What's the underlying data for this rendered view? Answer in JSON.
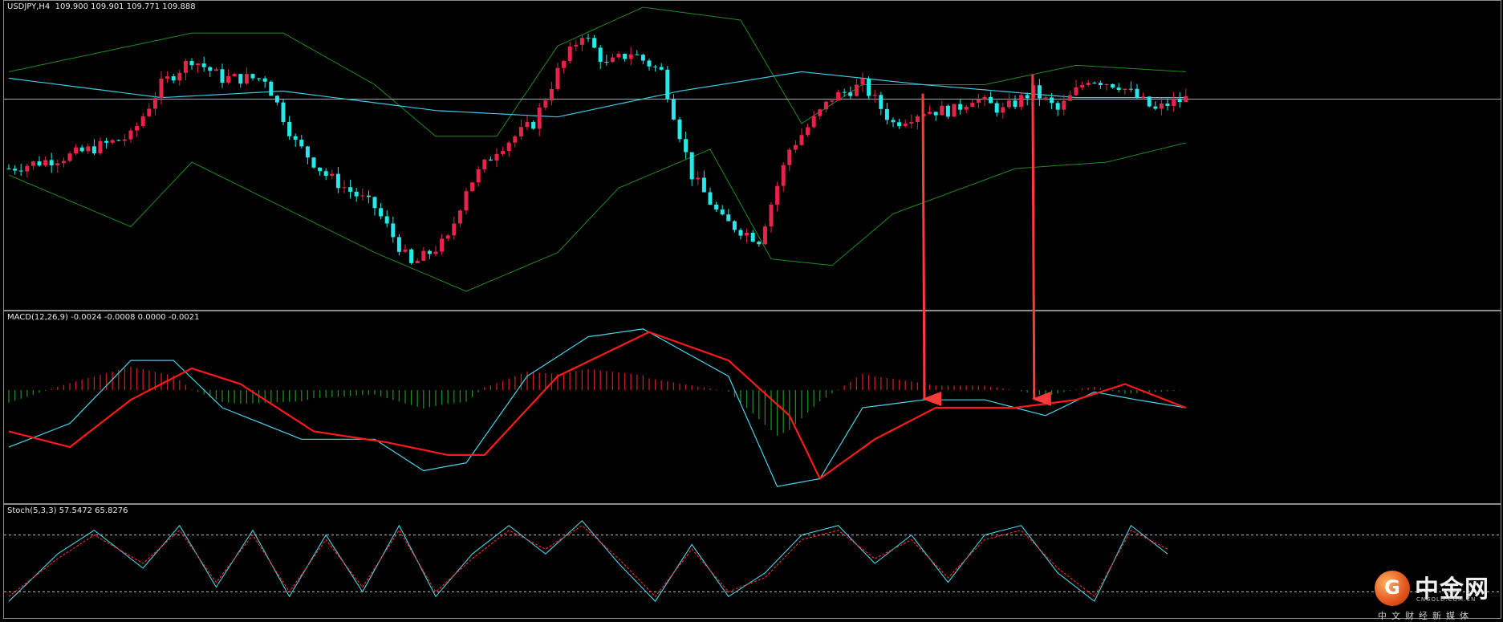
{
  "main_pane": {
    "label": "USDJPY,H4  109.900 109.901 109.771 109.888"
  },
  "macd_pane": {
    "label": "MACD(12,26,9) -0.0024 -0.0008 0.0000 -0.0021"
  },
  "stoch_pane": {
    "label": "Stoch(5,3,3) 57.5472 65.8276"
  },
  "logo": {
    "text": "中金网",
    "url": "CNGOLD.COM.CN",
    "subtitle": "中文财经新媒体"
  },
  "colors": {
    "bull": "#e8234b",
    "bear": "#26e8e8",
    "bollinger": "#1f8c1f",
    "ma": "#3cc8e0",
    "macd_signal": "#ff1a1a",
    "macd_line": "#4ad4e8",
    "hist_pos": "#c81e1e",
    "hist_neg": "#1f8c1f",
    "stoch_main": "#4ad4e8",
    "stoch_signal": "#ff2a2a",
    "arrow": "#ff3a3a"
  },
  "chart_data": [
    {
      "type": "candlestick",
      "symbol": "USDJPY",
      "timeframe": "H4",
      "indicators": [
        "Bollinger Bands",
        "Moving Average"
      ],
      "ylim": [
        108.3,
        110.55
      ],
      "current_price_line": 109.888,
      "close_path": [
        [
          0,
          109.35
        ],
        [
          10,
          109.45
        ],
        [
          20,
          109.6
        ],
        [
          25,
          110.0
        ],
        [
          30,
          110.2
        ],
        [
          35,
          110.05
        ],
        [
          42,
          110.05
        ],
        [
          47,
          109.55
        ],
        [
          52,
          109.3
        ],
        [
          60,
          109.05
        ],
        [
          66,
          108.6
        ],
        [
          72,
          108.8
        ],
        [
          75,
          109.2
        ],
        [
          80,
          109.5
        ],
        [
          86,
          109.7
        ],
        [
          90,
          110.1
        ],
        [
          94,
          110.4
        ],
        [
          98,
          110.15
        ],
        [
          102,
          110.25
        ],
        [
          107,
          110.1
        ],
        [
          112,
          109.3
        ],
        [
          117,
          108.95
        ],
        [
          123,
          108.8
        ],
        [
          128,
          109.5
        ],
        [
          135,
          109.9
        ],
        [
          140,
          110.0
        ],
        [
          145,
          109.7
        ],
        [
          150,
          109.8
        ],
        [
          155,
          109.8
        ],
        [
          158,
          109.9
        ],
        [
          163,
          109.8
        ],
        [
          168,
          109.95
        ],
        [
          172,
          109.8
        ],
        [
          177,
          110.05
        ],
        [
          182,
          110.0
        ],
        [
          185,
          109.9
        ],
        [
          188,
          109.8
        ],
        [
          190,
          109.85
        ],
        [
          193,
          109.89
        ]
      ],
      "series": [
        {
          "name": "upper_band",
          "points": [
            [
              0,
              110.1
            ],
            [
              30,
              110.4
            ],
            [
              45,
              110.4
            ],
            [
              60,
              110.0
            ],
            [
              70,
              109.6
            ],
            [
              80,
              109.6
            ],
            [
              90,
              110.3
            ],
            [
              104,
              110.6
            ],
            [
              120,
              110.5
            ],
            [
              130,
              109.7
            ],
            [
              140,
              110.0
            ],
            [
              160,
              110.0
            ],
            [
              175,
              110.15
            ],
            [
              193,
              110.1
            ]
          ]
        },
        {
          "name": "lower_band",
          "points": [
            [
              0,
              109.3
            ],
            [
              20,
              108.9
            ],
            [
              30,
              109.4
            ],
            [
              45,
              109.05
            ],
            [
              60,
              108.7
            ],
            [
              75,
              108.4
            ],
            [
              90,
              108.7
            ],
            [
              100,
              109.2
            ],
            [
              115,
              109.5
            ],
            [
              125,
              108.65
            ],
            [
              135,
              108.6
            ],
            [
              145,
              109.0
            ],
            [
              165,
              109.35
            ],
            [
              180,
              109.4
            ],
            [
              193,
              109.55
            ]
          ]
        },
        {
          "name": "moving_average",
          "points": [
            [
              0,
              110.05
            ],
            [
              25,
              109.9
            ],
            [
              45,
              109.95
            ],
            [
              70,
              109.8
            ],
            [
              90,
              109.75
            ],
            [
              110,
              109.95
            ],
            [
              130,
              110.1
            ],
            [
              150,
              110.0
            ],
            [
              175,
              109.9
            ],
            [
              193,
              109.9
            ]
          ]
        }
      ],
      "annotations": [
        {
          "type": "arrow",
          "from_bar": 150,
          "to_pane": "macd"
        },
        {
          "type": "arrow",
          "from_bar": 168,
          "to_pane": "macd"
        }
      ]
    },
    {
      "type": "line",
      "name": "MACD(12,26,9)",
      "ylim": [
        -0.55,
        0.55
      ],
      "series": [
        {
          "name": "macd_line",
          "points": [
            [
              0,
              -0.25
            ],
            [
              10,
              -0.1
            ],
            [
              20,
              0.3
            ],
            [
              27,
              0.3
            ],
            [
              35,
              0.0
            ],
            [
              48,
              -0.2
            ],
            [
              60,
              -0.2
            ],
            [
              68,
              -0.4
            ],
            [
              75,
              -0.35
            ],
            [
              85,
              0.2
            ],
            [
              95,
              0.45
            ],
            [
              104,
              0.5
            ],
            [
              118,
              0.2
            ],
            [
              126,
              -0.5
            ],
            [
              133,
              -0.45
            ],
            [
              140,
              0.0
            ],
            [
              150,
              0.05
            ],
            [
              160,
              0.05
            ],
            [
              170,
              -0.05
            ],
            [
              178,
              0.1
            ],
            [
              185,
              0.05
            ],
            [
              193,
              0.0
            ]
          ]
        },
        {
          "name": "signal_line",
          "points": [
            [
              0,
              -0.15
            ],
            [
              10,
              -0.25
            ],
            [
              20,
              0.05
            ],
            [
              30,
              0.25
            ],
            [
              38,
              0.15
            ],
            [
              50,
              -0.15
            ],
            [
              62,
              -0.22
            ],
            [
              72,
              -0.3
            ],
            [
              78,
              -0.3
            ],
            [
              90,
              0.2
            ],
            [
              105,
              0.48
            ],
            [
              118,
              0.3
            ],
            [
              128,
              -0.05
            ],
            [
              133,
              -0.45
            ],
            [
              142,
              -0.2
            ],
            [
              152,
              0.0
            ],
            [
              165,
              0.0
            ],
            [
              175,
              0.05
            ],
            [
              183,
              0.15
            ],
            [
              193,
              0.0
            ]
          ]
        }
      ]
    },
    {
      "type": "line",
      "name": "Stoch(5,3,3)",
      "ylim": [
        0,
        100
      ],
      "levels": [
        80,
        20
      ],
      "series": [
        {
          "name": "main",
          "values_note": "oscillating %K",
          "points": [
            [
              0,
              10
            ],
            [
              8,
              60
            ],
            [
              14,
              85
            ],
            [
              22,
              45
            ],
            [
              28,
              90
            ],
            [
              34,
              25
            ],
            [
              40,
              85
            ],
            [
              46,
              15
            ],
            [
              52,
              80
            ],
            [
              58,
              20
            ],
            [
              64,
              90
            ],
            [
              70,
              15
            ],
            [
              76,
              60
            ],
            [
              82,
              90
            ],
            [
              88,
              60
            ],
            [
              94,
              95
            ],
            [
              100,
              50
            ],
            [
              106,
              10
            ],
            [
              112,
              70
            ],
            [
              118,
              15
            ],
            [
              124,
              40
            ],
            [
              130,
              80
            ],
            [
              136,
              90
            ],
            [
              142,
              50
            ],
            [
              148,
              80
            ],
            [
              154,
              30
            ],
            [
              160,
              80
            ],
            [
              166,
              90
            ],
            [
              172,
              40
            ],
            [
              178,
              10
            ],
            [
              184,
              90
            ],
            [
              190,
              60
            ]
          ]
        },
        {
          "name": "signal",
          "points": [
            [
              0,
              15
            ],
            [
              8,
              55
            ],
            [
              14,
              80
            ],
            [
              22,
              50
            ],
            [
              28,
              85
            ],
            [
              34,
              30
            ],
            [
              40,
              80
            ],
            [
              46,
              20
            ],
            [
              52,
              75
            ],
            [
              58,
              25
            ],
            [
              64,
              85
            ],
            [
              70,
              20
            ],
            [
              76,
              55
            ],
            [
              82,
              85
            ],
            [
              88,
              65
            ],
            [
              94,
              90
            ],
            [
              100,
              55
            ],
            [
              106,
              15
            ],
            [
              112,
              65
            ],
            [
              118,
              20
            ],
            [
              124,
              35
            ],
            [
              130,
              75
            ],
            [
              136,
              85
            ],
            [
              142,
              55
            ],
            [
              148,
              75
            ],
            [
              154,
              35
            ],
            [
              160,
              75
            ],
            [
              166,
              85
            ],
            [
              172,
              45
            ],
            [
              178,
              15
            ],
            [
              184,
              85
            ],
            [
              190,
              65
            ]
          ]
        }
      ]
    }
  ]
}
